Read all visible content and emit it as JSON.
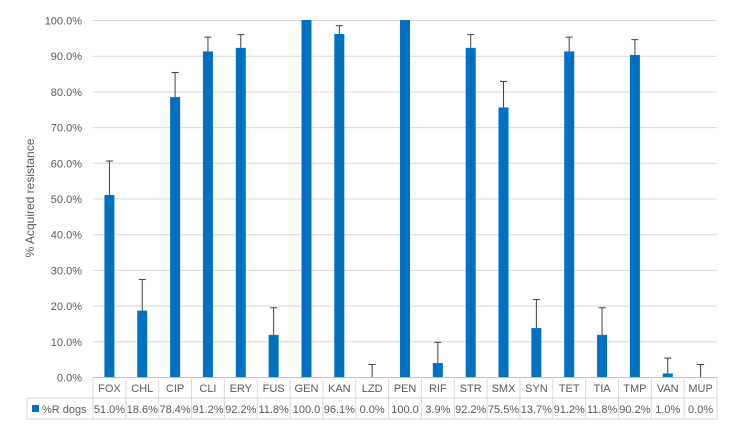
{
  "chart_data": {
    "type": "bar",
    "ylabel": "% Acquired resistance",
    "ylim": [
      0,
      100
    ],
    "y_ticks": [
      "0.0%",
      "10.0%",
      "20.0%",
      "30.0%",
      "40.0%",
      "50.0%",
      "60.0%",
      "70.0%",
      "80.0%",
      "90.0%",
      "100.0%"
    ],
    "grid": true,
    "legend_placement": "data-table-row",
    "bar_color": "#0070C0",
    "categories": [
      "FOX",
      "CHL",
      "CIP",
      "CLI",
      "ERY",
      "FUS",
      "GEN",
      "KAN",
      "LZD",
      "PEN",
      "RIF",
      "STR",
      "SMX",
      "SYN",
      "TET",
      "TIA",
      "TMP",
      "VAN",
      "MUP"
    ],
    "series": [
      {
        "name": "%R dogs",
        "values": [
          51.0,
          18.6,
          78.4,
          91.2,
          92.2,
          11.8,
          100.0,
          96.1,
          0.0,
          100.0,
          3.9,
          92.2,
          75.5,
          13.7,
          91.2,
          11.8,
          90.2,
          1.0,
          0.0
        ],
        "error_upper": [
          60.5,
          27.3,
          85.3,
          95.2,
          95.9,
          19.4,
          100.0,
          98.4,
          3.5,
          100.0,
          9.7,
          95.9,
          82.8,
          21.7,
          95.2,
          19.4,
          94.5,
          5.3,
          3.5
        ],
        "labels": [
          "51.0%",
          "18.6%",
          "78.4%",
          "91.2%",
          "92.2%",
          "11.8%",
          "100.0",
          "96.1%",
          "0.0%",
          "100.0",
          "3.9%",
          "92.2%",
          "75.5%",
          "13.7%",
          "91.2%",
          "11.8%",
          "90.2%",
          "1.0%",
          "0.0%"
        ]
      }
    ]
  }
}
